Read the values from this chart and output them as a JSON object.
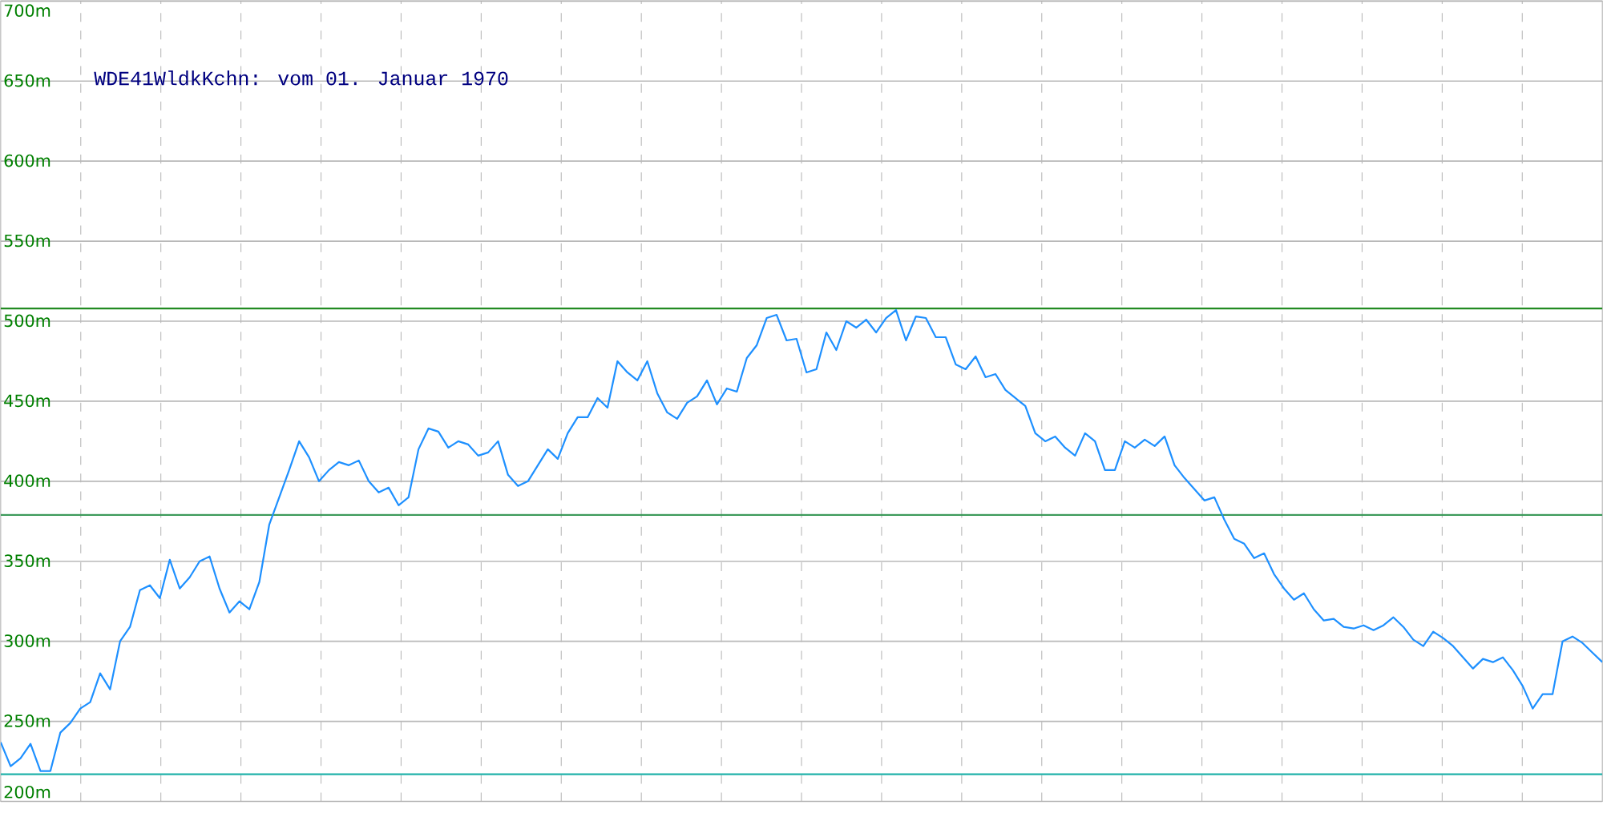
{
  "chart_data": {
    "type": "line",
    "title": "WDE41WldkKchn: vom 01. Januar 1970",
    "categories": [
      null,
      null,
      null,
      null,
      null,
      null,
      null,
      null,
      null,
      null,
      null,
      null,
      null,
      null,
      null,
      null,
      null,
      null,
      null,
      null,
      null,
      null,
      null,
      null,
      null,
      null,
      null,
      null,
      null,
      null,
      null,
      null,
      null,
      null,
      null,
      null,
      null,
      null,
      null,
      null,
      null,
      null,
      null,
      null,
      null,
      null,
      null,
      null,
      null,
      null,
      null,
      null,
      null,
      null,
      null,
      null,
      null,
      null,
      null,
      null,
      null,
      null,
      null,
      null,
      null,
      null,
      null,
      null,
      null,
      null,
      null,
      null,
      null,
      null,
      null,
      null,
      null,
      null,
      null,
      null,
      null,
      null,
      null,
      null,
      null,
      null,
      null,
      null,
      null,
      null,
      null,
      null,
      null,
      null,
      null,
      null,
      null,
      null,
      null,
      null,
      null,
      null,
      null,
      null,
      null,
      null,
      null,
      null,
      null,
      null,
      null,
      null,
      null,
      null,
      null,
      null,
      null,
      null,
      null,
      null,
      null,
      null,
      null,
      null,
      null,
      null,
      null,
      null,
      null,
      null,
      null,
      null,
      null,
      null,
      null,
      null,
      null,
      null,
      null,
      null,
      null,
      null,
      null,
      null,
      null,
      null,
      null,
      null,
      null,
      null,
      null,
      null,
      null,
      null,
      null,
      null,
      null,
      null,
      null,
      null,
      null,
      null
    ],
    "values": [
      237,
      222,
      227,
      236,
      219,
      219,
      243,
      249,
      258,
      262,
      280,
      270,
      300,
      309,
      332,
      335,
      327,
      351,
      333,
      340,
      350,
      353,
      333,
      318,
      325,
      320,
      337,
      373,
      390,
      407,
      425,
      415,
      400,
      407,
      412,
      410,
      413,
      400,
      393,
      396,
      385,
      390,
      420,
      433,
      431,
      421,
      425,
      423,
      416,
      418,
      425,
      404,
      397,
      400,
      410,
      420,
      414,
      430,
      440,
      440,
      452,
      446,
      475,
      468,
      463,
      475,
      455,
      443,
      439,
      449,
      453,
      463,
      448,
      458,
      456,
      477,
      485,
      502,
      504,
      488,
      489,
      468,
      470,
      493,
      482,
      500,
      496,
      501,
      493,
      502,
      507,
      488,
      503,
      502,
      490,
      490,
      473,
      470,
      478,
      465,
      467,
      457,
      452,
      447,
      430,
      425,
      428,
      421,
      416,
      430,
      425,
      407,
      407,
      425,
      421,
      426,
      422,
      428,
      410,
      402,
      395,
      388,
      390,
      376,
      364,
      361,
      352,
      355,
      342,
      333,
      326,
      330,
      320,
      313,
      314,
      309,
      308,
      310,
      307,
      310,
      315,
      309,
      301,
      297,
      306,
      302,
      297,
      290,
      283,
      289,
      287,
      290,
      282,
      272,
      258,
      267,
      267,
      300,
      303,
      299,
      293,
      287
    ],
    "color": "#1e90ff",
    "ylim": [
      200,
      700
    ],
    "yticks": [
      {
        "value": 200,
        "label": "200m"
      },
      {
        "value": 250,
        "label": "250m"
      },
      {
        "value": 300,
        "label": "300m"
      },
      {
        "value": 350,
        "label": "350m"
      },
      {
        "value": 400,
        "label": "400m"
      },
      {
        "value": 450,
        "label": "450m"
      },
      {
        "value": 500,
        "label": "500m"
      },
      {
        "value": 550,
        "label": "550m"
      },
      {
        "value": 600,
        "label": "600m"
      },
      {
        "value": 650,
        "label": "650m"
      },
      {
        "value": 700,
        "label": "700m"
      }
    ],
    "grid": true,
    "tick_labels": "y",
    "ref_lines": [
      {
        "axis": "y",
        "value": 508,
        "color": "#228b22"
      },
      {
        "axis": "y",
        "value": 379,
        "color": "#3c9a5a"
      },
      {
        "axis": "y",
        "value": 217,
        "color": "#20b2aa"
      }
    ]
  }
}
